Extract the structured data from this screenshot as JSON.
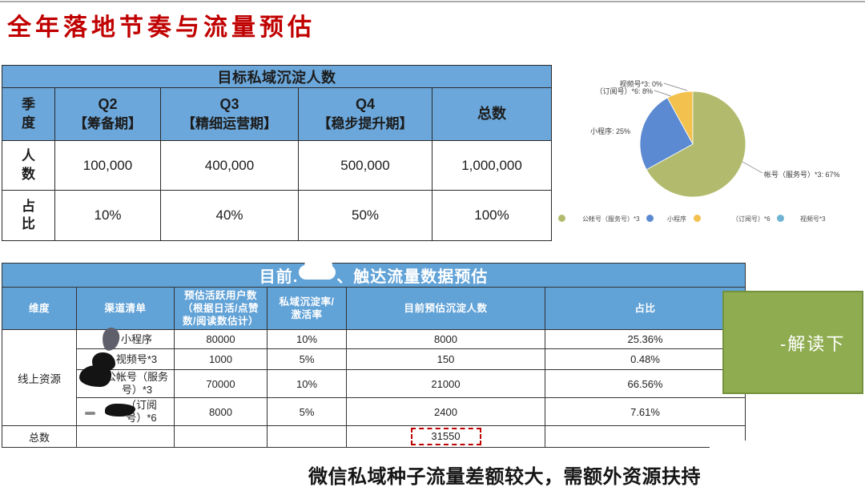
{
  "page": {
    "title": "全年落地节奏与流量预估",
    "footer_note": "微信私域种子流量差额较大，需额外资源扶持"
  },
  "table1": {
    "title": "目标私域沉淀人数",
    "corner_label": "季度",
    "columns": [
      {
        "q": "Q2",
        "phase": "【筹备期】"
      },
      {
        "q": "Q3",
        "phase": "【精细运营期】"
      },
      {
        "q": "Q4",
        "phase": "【稳步提升期】"
      },
      {
        "q": "总数",
        "phase": ""
      }
    ],
    "rows": [
      {
        "label": "人数",
        "values": [
          "100,000",
          "400,000",
          "500,000",
          "1,000,000"
        ]
      },
      {
        "label": "占比",
        "values": [
          "10%",
          "40%",
          "50%",
          "100%"
        ]
      }
    ]
  },
  "chart_data": {
    "type": "pie",
    "slices": [
      {
        "label": "公帐号（服务号）*3",
        "value": 67,
        "color": "#b2bb6d"
      },
      {
        "label": "小程序",
        "value": 25,
        "color": "#5b8ad2"
      },
      {
        "label": "（订阅号）*6",
        "value": 8,
        "color": "#f3c14d"
      },
      {
        "label": "视频号*3",
        "value": 0,
        "color": "#6fb5d3"
      }
    ],
    "callouts": {
      "c0": "视频号*3: 0%",
      "c1": "（订阅号）*6: 8%",
      "c2": "小程序: 25%",
      "c3": "帐号（服务号）*3: 67%"
    }
  },
  "table2": {
    "title_prefix": "目前.",
    "title_suffix": "、触达流量数据预估",
    "headers": [
      "维度",
      "渠道清单",
      "预估活跃用户数（根据日活/点赞数/阅读数估计）",
      "私域沉淀率/激活率",
      "目前预估沉淀人数",
      "占比"
    ],
    "dimension_label": "线上资源",
    "rows": [
      {
        "channel": "小程序",
        "active": "80000",
        "rate": "10%",
        "settled": "8000",
        "share": "25.36%"
      },
      {
        "channel": "视频号*3",
        "active": "1000",
        "rate": "5%",
        "settled": "150",
        "share": "0.48%"
      },
      {
        "channel": "公帐号（服务号）*3",
        "active": "70000",
        "rate": "10%",
        "settled": "21000",
        "share": "66.56%"
      },
      {
        "channel": "（订阅号）*6",
        "active": "8000",
        "rate": "5%",
        "settled": "2400",
        "share": "7.61%"
      }
    ],
    "total_label": "总数",
    "total_value": "31550"
  },
  "annotation_box": {
    "label": "-解读下"
  }
}
